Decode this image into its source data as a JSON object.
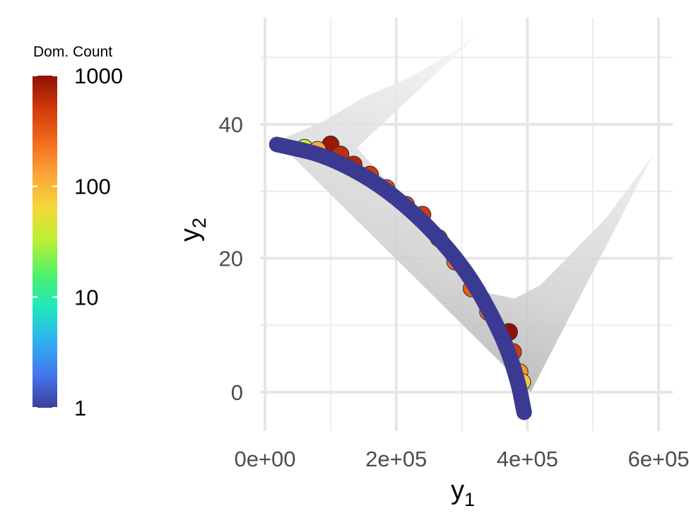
{
  "chart_data": {
    "type": "scatter",
    "title": "",
    "xlabel": {
      "base": "y",
      "sub": "1"
    },
    "ylabel": {
      "base": "y",
      "sub": "2"
    },
    "xlim": [
      0,
      600000
    ],
    "ylim": [
      -5,
      56
    ],
    "x_ticks": [
      {
        "value": 0,
        "label": "0e+00"
      },
      {
        "value": 200000,
        "label": "2e+05"
      },
      {
        "value": 400000,
        "label": "4e+05"
      },
      {
        "value": 600000,
        "label": "6e+05"
      }
    ],
    "x_minor": [
      100000,
      300000,
      500000
    ],
    "y_ticks": [
      {
        "value": 0,
        "label": "0"
      },
      {
        "value": 20,
        "label": "20"
      },
      {
        "value": 40,
        "label": "40"
      }
    ],
    "y_minor": [
      10,
      30,
      50
    ],
    "grid": true,
    "legend": {
      "title": "Dom. Count",
      "position": "left",
      "scale": "log",
      "range": [
        1,
        1000
      ],
      "ticks": [
        {
          "value": 1,
          "label": "1"
        },
        {
          "value": 10,
          "label": "10"
        },
        {
          "value": 100,
          "label": "100"
        },
        {
          "value": 1000,
          "label": "1000"
        }
      ],
      "colormap": [
        "#3b3f99",
        "#4477ee",
        "#2fb0f0",
        "#1ee8c0",
        "#4cf26a",
        "#b8f035",
        "#f4d83a",
        "#fda638",
        "#f26b1e",
        "#d13a0c",
        "#8f1104"
      ]
    },
    "fronts": {
      "pareto_curve": {
        "color": "#3b3a92",
        "points": [
          [
            18000,
            37
          ],
          [
            100000,
            35.2
          ],
          [
            200000,
            29.5
          ],
          [
            300000,
            19.5
          ],
          [
            360000,
            9
          ],
          [
            385000,
            2
          ],
          [
            395000,
            -3
          ]
        ]
      },
      "dominated_region_outline": {
        "color": "#dcdcdc",
        "points": [
          [
            18000,
            37.5
          ],
          [
            90000,
            40.5
          ],
          [
            150000,
            44
          ],
          [
            220000,
            47
          ],
          [
            290000,
            51
          ],
          [
            325000,
            53.5
          ],
          [
            140000,
            36.5
          ],
          [
            200000,
            30
          ],
          [
            270000,
            22
          ],
          [
            330000,
            15
          ],
          [
            380000,
            14
          ],
          [
            420000,
            16
          ],
          [
            460000,
            20
          ],
          [
            520000,
            26
          ],
          [
            592000,
            35.5
          ],
          [
            405000,
            0
          ]
        ]
      },
      "colored_points": [
        {
          "x": 100000,
          "y": 37.0,
          "count": 900
        },
        {
          "x": 115000,
          "y": 35.5,
          "count": 600
        },
        {
          "x": 135000,
          "y": 34.0,
          "count": 700
        },
        {
          "x": 160000,
          "y": 32.5,
          "count": 500
        },
        {
          "x": 185000,
          "y": 30.5,
          "count": 400
        },
        {
          "x": 215000,
          "y": 28.0,
          "count": 350
        },
        {
          "x": 240000,
          "y": 26.5,
          "count": 500
        },
        {
          "x": 265000,
          "y": 23.0,
          "count": 300
        },
        {
          "x": 290000,
          "y": 19.5,
          "count": 250
        },
        {
          "x": 315000,
          "y": 15.5,
          "count": 300
        },
        {
          "x": 340000,
          "y": 12.0,
          "count": 250
        },
        {
          "x": 372000,
          "y": 9.0,
          "count": 1000
        },
        {
          "x": 378000,
          "y": 6.0,
          "count": 500
        },
        {
          "x": 388000,
          "y": 3.0,
          "count": 150
        },
        {
          "x": 392000,
          "y": 1.5,
          "count": 80
        },
        {
          "x": 60000,
          "y": 36.5,
          "count": 40
        },
        {
          "x": 80000,
          "y": 36.2,
          "count": 120
        }
      ]
    }
  }
}
